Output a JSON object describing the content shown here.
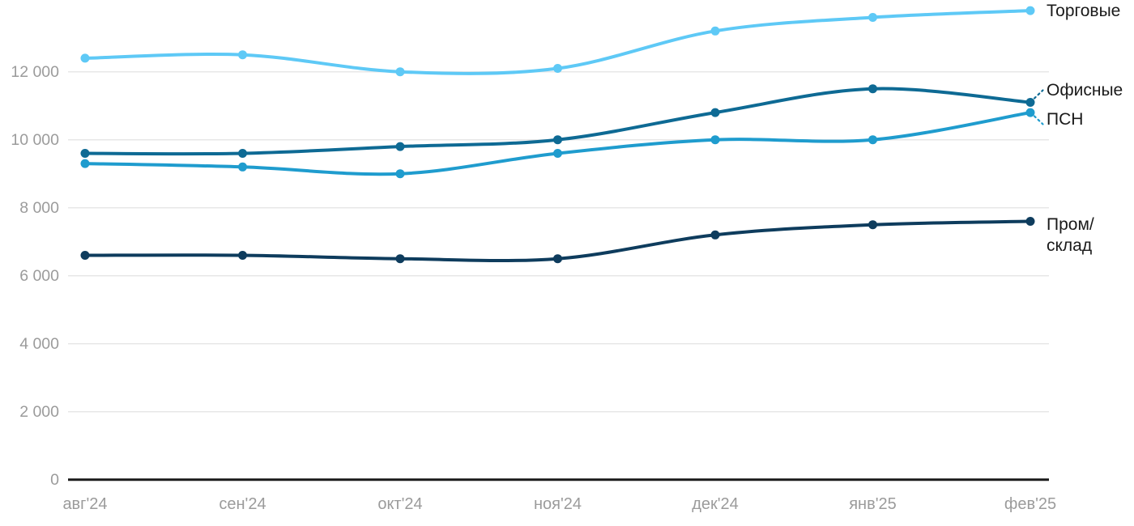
{
  "chart_data": {
    "type": "line",
    "title": "",
    "xlabel": "",
    "ylabel": "",
    "x_categories": [
      "авг'24",
      "сен'24",
      "окт'24",
      "ноя'24",
      "дек'24",
      "янв'25",
      "фев'25"
    ],
    "y_tick_values": [
      0,
      2000,
      4000,
      6000,
      8000,
      10000,
      12000
    ],
    "y_tick_labels": [
      "0",
      "2 000",
      "4 000",
      "6 000",
      "8 000",
      "10 000",
      "12 000"
    ],
    "ylim": [
      0,
      14000
    ],
    "grid": "horizontal-only",
    "legend_position": "right-edge-inline-labels",
    "series": [
      {
        "name": "Торговые",
        "label_lines": [
          "Торговые"
        ],
        "color": "#5EC9F6",
        "values": [
          12400,
          12500,
          12000,
          12100,
          13200,
          13600,
          13800
        ]
      },
      {
        "name": "Офисные",
        "label_lines": [
          "Офисные"
        ],
        "color": "#0E6A94",
        "values": [
          9600,
          9600,
          9800,
          10000,
          10800,
          11500,
          11100
        ]
      },
      {
        "name": "ПСН",
        "label_lines": [
          "ПСН"
        ],
        "color": "#1F9CCE",
        "values": [
          9300,
          9200,
          9000,
          9600,
          10000,
          10000,
          10800
        ]
      },
      {
        "name": "Пром/склад",
        "label_lines": [
          "Пром/",
          "склад"
        ],
        "color": "#0E3C5D",
        "values": [
          6600,
          6600,
          6500,
          6500,
          7200,
          7500,
          7600
        ]
      }
    ],
    "style": {
      "axis_text_color": "#9B9B9B",
      "axis_line_color": "#1A1A1A",
      "grid_color": "#E7E7E7",
      "label_text_color": "#1A1A1A",
      "background": "#FFFFFF"
    }
  }
}
